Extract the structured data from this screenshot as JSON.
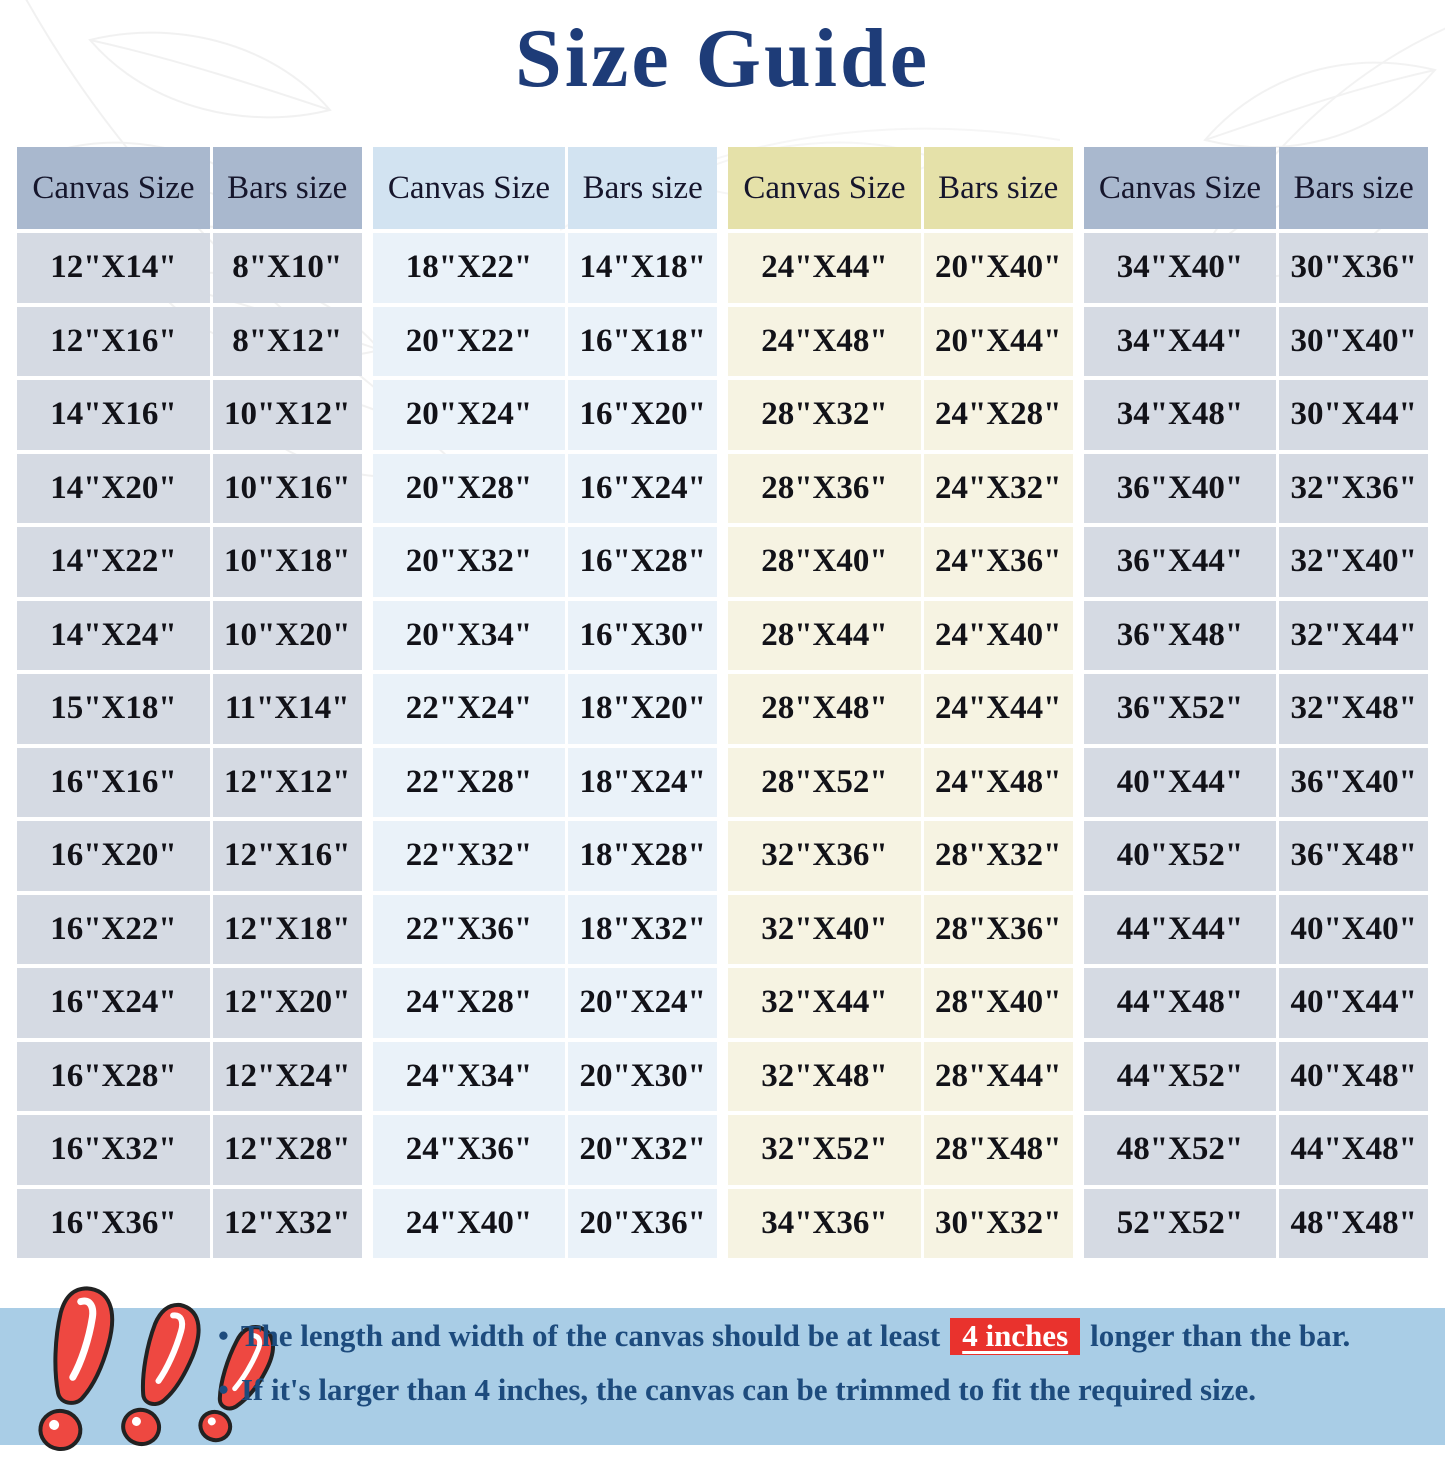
{
  "title": "Size Guide",
  "tables": [
    {
      "theme": "slate",
      "headers": {
        "canvas": "Canvas Size",
        "bars": "Bars size"
      },
      "rows": [
        [
          "12\"X14\"",
          "8\"X10\""
        ],
        [
          "12\"X16\"",
          "8\"X12\""
        ],
        [
          "14\"X16\"",
          "10\"X12\""
        ],
        [
          "14\"X20\"",
          "10\"X16\""
        ],
        [
          "14\"X22\"",
          "10\"X18\""
        ],
        [
          "14\"X24\"",
          "10\"X20\""
        ],
        [
          "15\"X18\"",
          "11\"X14\""
        ],
        [
          "16\"X16\"",
          "12\"X12\""
        ],
        [
          "16\"X20\"",
          "12\"X16\""
        ],
        [
          "16\"X22\"",
          "12\"X18\""
        ],
        [
          "16\"X24\"",
          "12\"X20\""
        ],
        [
          "16\"X28\"",
          "12\"X24\""
        ],
        [
          "16\"X32\"",
          "12\"X28\""
        ],
        [
          "16\"X36\"",
          "12\"X32\""
        ]
      ]
    },
    {
      "theme": "lightblue",
      "headers": {
        "canvas": "Canvas Size",
        "bars": "Bars size"
      },
      "rows": [
        [
          "18\"X22\"",
          "14\"X18\""
        ],
        [
          "20\"X22\"",
          "16\"X18\""
        ],
        [
          "20\"X24\"",
          "16\"X20\""
        ],
        [
          "20\"X28\"",
          "16\"X24\""
        ],
        [
          "20\"X32\"",
          "16\"X28\""
        ],
        [
          "20\"X34\"",
          "16\"X30\""
        ],
        [
          "22\"X24\"",
          "18\"X20\""
        ],
        [
          "22\"X28\"",
          "18\"X24\""
        ],
        [
          "22\"X32\"",
          "18\"X28\""
        ],
        [
          "22\"X36\"",
          "18\"X32\""
        ],
        [
          "24\"X28\"",
          "20\"X24\""
        ],
        [
          "24\"X34\"",
          "20\"X30\""
        ],
        [
          "24\"X36\"",
          "20\"X32\""
        ],
        [
          "24\"X40\"",
          "20\"X36\""
        ]
      ]
    },
    {
      "theme": "cream",
      "headers": {
        "canvas": "Canvas Size",
        "bars": "Bars size"
      },
      "rows": [
        [
          "24\"X44\"",
          "20\"X40\""
        ],
        [
          "24\"X48\"",
          "20\"X44\""
        ],
        [
          "28\"X32\"",
          "24\"X28\""
        ],
        [
          "28\"X36\"",
          "24\"X32\""
        ],
        [
          "28\"X40\"",
          "24\"X36\""
        ],
        [
          "28\"X44\"",
          "24\"X40\""
        ],
        [
          "28\"X48\"",
          "24\"X44\""
        ],
        [
          "28\"X52\"",
          "24\"X48\""
        ],
        [
          "32\"X36\"",
          "28\"X32\""
        ],
        [
          "32\"X40\"",
          "28\"X36\""
        ],
        [
          "32\"X44\"",
          "28\"X40\""
        ],
        [
          "32\"X48\"",
          "28\"X44\""
        ],
        [
          "32\"X52\"",
          "28\"X48\""
        ],
        [
          "34\"X36\"",
          "30\"X32\""
        ]
      ]
    },
    {
      "theme": "slate",
      "headers": {
        "canvas": "Canvas Size",
        "bars": "Bars size"
      },
      "rows": [
        [
          "34\"X40\"",
          "30\"X36\""
        ],
        [
          "34\"X44\"",
          "30\"X40\""
        ],
        [
          "34\"X48\"",
          "30\"X44\""
        ],
        [
          "36\"X40\"",
          "32\"X36\""
        ],
        [
          "36\"X44\"",
          "32\"X40\""
        ],
        [
          "36\"X48\"",
          "32\"X44\""
        ],
        [
          "36\"X52\"",
          "32\"X48\""
        ],
        [
          "40\"X44\"",
          "36\"X40\""
        ],
        [
          "40\"X52\"",
          "36\"X48\""
        ],
        [
          "44\"X44\"",
          "40\"X40\""
        ],
        [
          "44\"X48\"",
          "40\"X44\""
        ],
        [
          "44\"X52\"",
          "40\"X48\""
        ],
        [
          "48\"X52\"",
          "44\"X48\""
        ],
        [
          "52\"X52\"",
          "48\"X48\""
        ]
      ]
    }
  ],
  "notes": {
    "bullet1_pre": "The length and width of the canvas should be at least",
    "bullet1_highlight": "4 inches",
    "bullet1_post": "longer than the bar.",
    "bullet2": "If it's larger than 4 inches, the canvas can be trimmed to fit the required size.",
    "bullet_marker": "•"
  },
  "colors": {
    "title": "#1e3c78",
    "slate_header": "#a9b8ce",
    "slate_row": "#d5dae3",
    "lightblue_header": "#d2e3f1",
    "lightblue_row": "#eaf2f9",
    "cream_header": "#e5e1a9",
    "cream_row": "#f6f3e2",
    "note_box": "#a9cde6",
    "note_text": "#1d4b7d",
    "highlight_red": "#e9322d",
    "exclamation_red": "#ee4841"
  }
}
